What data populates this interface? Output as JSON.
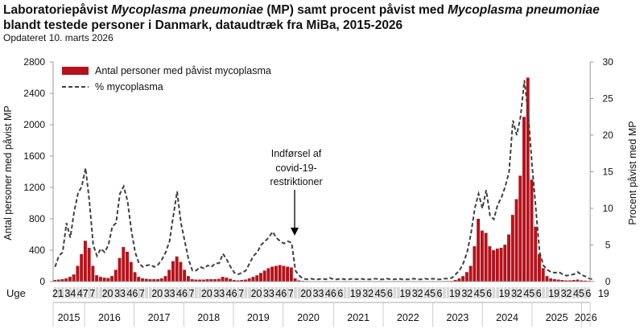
{
  "title": {
    "line1_a": "Laboratoriepåvist ",
    "line1_b": "Mycoplasma pneumoniae",
    "line1_c": " (MP) samt procent påvist med ",
    "line1_d": "Mycoplasma pneumoniae",
    "line2": "blandt testede  personer i Danmark, dataudtræk fra MiBa, 2015-2026"
  },
  "subtitle": "Opdateret 10. marts 2026",
  "chart_data": {
    "type": "bar+line",
    "ylabel_left": "Antal personer med påvist MP",
    "ylabel_right": "Procent påvist med MP",
    "ylim_left": [
      0,
      2800
    ],
    "yticks_left": [
      0,
      400,
      800,
      1200,
      1600,
      2000,
      2400,
      2800
    ],
    "ylim_right": [
      0,
      30
    ],
    "yticks_right": [
      0,
      5,
      10,
      15,
      20,
      25,
      30
    ],
    "xlabel": "Uge",
    "x_start": {
      "year": 2015,
      "week": 21
    },
    "x_step_weeks": 4,
    "colors": {
      "bars": "#b5121b",
      "line": "#404040"
    },
    "legend": {
      "position": "top-left",
      "bars": "Antal personer med påvist mycoplasma",
      "line": "% mycoplasma"
    },
    "annotation": {
      "lines": [
        "Indførsel af",
        "covid-19-",
        "restriktioner"
      ],
      "year": 2020,
      "week": 11
    },
    "week_ticks": [
      {
        "year": 2015,
        "weeks": [
          21,
          34,
          47
        ]
      },
      {
        "year": 2016,
        "weeks": [
          7,
          20,
          33,
          46
        ]
      },
      {
        "year": 2017,
        "weeks": [
          7,
          20,
          33,
          46
        ]
      },
      {
        "year": 2018,
        "weeks": [
          7,
          20,
          33,
          46
        ]
      },
      {
        "year": 2019,
        "weeks": [
          7,
          20,
          33,
          46
        ]
      },
      {
        "year": 2020,
        "weeks": [
          7,
          20,
          33,
          46
        ]
      },
      {
        "year": 2021,
        "weeks": [
          6,
          19,
          32,
          45
        ]
      },
      {
        "year": 2022,
        "weeks": [
          6,
          19,
          32,
          45
        ]
      },
      {
        "year": 2023,
        "weeks": [
          6,
          19,
          32,
          45
        ]
      },
      {
        "year": 2024,
        "weeks": [
          6,
          19,
          32,
          45
        ]
      },
      {
        "year": 2025,
        "weeks": [
          6,
          19,
          32,
          45
        ]
      },
      {
        "year": 2026,
        "weeks": [
          6,
          19
        ]
      }
    ],
    "years": [
      2015,
      2016,
      2017,
      2018,
      2019,
      2020,
      2021,
      2022,
      2023,
      2024,
      2025,
      2026
    ],
    "series": [
      {
        "name": "Antal personer med påvist mycoplasma",
        "type": "bar",
        "values": [
          20,
          25,
          30,
          40,
          60,
          90,
          200,
          350,
          520,
          430,
          200,
          80,
          60,
          50,
          45,
          70,
          150,
          300,
          440,
          380,
          250,
          120,
          60,
          40,
          35,
          30,
          30,
          30,
          40,
          70,
          150,
          260,
          320,
          250,
          150,
          70,
          30,
          25,
          25,
          25,
          30,
          30,
          30,
          35,
          60,
          50,
          35,
          20,
          15,
          20,
          25,
          40,
          60,
          80,
          110,
          140,
          170,
          190,
          200,
          210,
          200,
          190,
          180,
          40,
          15,
          8,
          6,
          5,
          5,
          4,
          5,
          6,
          5,
          4,
          5,
          5,
          6,
          5,
          4,
          5,
          6,
          5,
          5,
          4,
          5,
          6,
          5,
          4,
          5,
          5,
          6,
          5,
          4,
          5,
          6,
          5,
          5,
          4,
          5,
          6,
          5,
          5,
          6,
          7,
          8,
          20,
          40,
          70,
          120,
          200,
          450,
          800,
          650,
          620,
          450,
          400,
          420,
          430,
          470,
          600,
          850,
          1050,
          1350,
          2100,
          2600,
          1300,
          700,
          350,
          170,
          70,
          40,
          30,
          25,
          20,
          15,
          15,
          20,
          25,
          15,
          12,
          8,
          5
        ]
      },
      {
        "name": "% mycoplasma",
        "type": "line",
        "values": [
          2,
          3.5,
          4,
          8,
          6,
          9.5,
          12,
          13,
          15.5,
          11,
          5,
          3.5,
          4.5,
          4,
          5,
          7.5,
          8,
          12,
          13,
          11,
          7,
          4,
          2.5,
          2,
          2.2,
          2.3,
          2,
          2.3,
          3,
          4,
          5.5,
          9,
          12.3,
          8,
          5.5,
          3,
          1.5,
          1.5,
          2,
          1.8,
          2.2,
          2,
          2.5,
          2.5,
          3.8,
          3,
          2,
          1.2,
          1,
          1.2,
          1.5,
          2.5,
          3.5,
          4,
          5,
          5.5,
          6,
          6.8,
          6,
          5.5,
          5.2,
          5.5,
          5.3,
          1.5,
          0.8,
          0.4,
          0.3,
          0.4,
          0.3,
          0.3,
          0.4,
          0.3,
          0.5,
          0.3,
          0.3,
          0.4,
          0.3,
          0.3,
          0.4,
          0.3,
          0.4,
          0.3,
          0.3,
          0.3,
          0.4,
          0.3,
          0.3,
          0.4,
          0.3,
          0.3,
          0.4,
          0.3,
          0.3,
          0.3,
          0.4,
          0.3,
          0.3,
          0.4,
          0.3,
          0.4,
          0.3,
          0.3,
          0.4,
          0.4,
          0.5,
          1,
          1.5,
          2.5,
          4,
          6.5,
          10,
          12,
          10,
          12.5,
          9,
          8.5,
          10.5,
          11.5,
          13,
          15,
          22,
          20,
          22.5,
          27.5,
          23,
          16,
          10,
          4,
          2.2,
          1.6,
          1.3,
          1.2,
          1.3,
          1,
          0.8,
          0.9,
          1,
          1.3,
          0.9,
          0.7,
          0.4,
          0.3
        ]
      }
    ]
  }
}
